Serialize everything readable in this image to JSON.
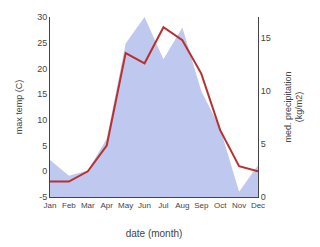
{
  "chart_data": {
    "type": "line",
    "categories": [
      "Jan",
      "Feb",
      "Mar",
      "Apr",
      "May",
      "Jun",
      "Jul",
      "Aug",
      "Sep",
      "Oct",
      "Nov",
      "Dec"
    ],
    "series": [
      {
        "type": "area",
        "axis": "y2",
        "color": "#bfc8ee",
        "values": [
          3.5,
          2.0,
          2.5,
          5.5,
          14.5,
          17.0,
          13.0,
          16.0,
          10.0,
          6.5,
          0.5,
          3.0
        ]
      },
      {
        "type": "line",
        "color": "#b83030",
        "values": [
          -2.0,
          -2.0,
          0.0,
          5.0,
          23.0,
          21.0,
          28.0,
          25.5,
          19.0,
          8.0,
          1.0,
          0.0
        ]
      }
    ],
    "xlabel": "date (month)",
    "ylabel": "max temp (C)",
    "y2label": "med. precipitation\n(kg/m2)",
    "ylim": [
      -5,
      30
    ],
    "yticks": [
      -5,
      0,
      5,
      10,
      15,
      20,
      25,
      30
    ],
    "y2lim": [
      0,
      17
    ],
    "y2ticks": [
      0,
      5,
      10,
      15
    ],
    "grid": false
  }
}
